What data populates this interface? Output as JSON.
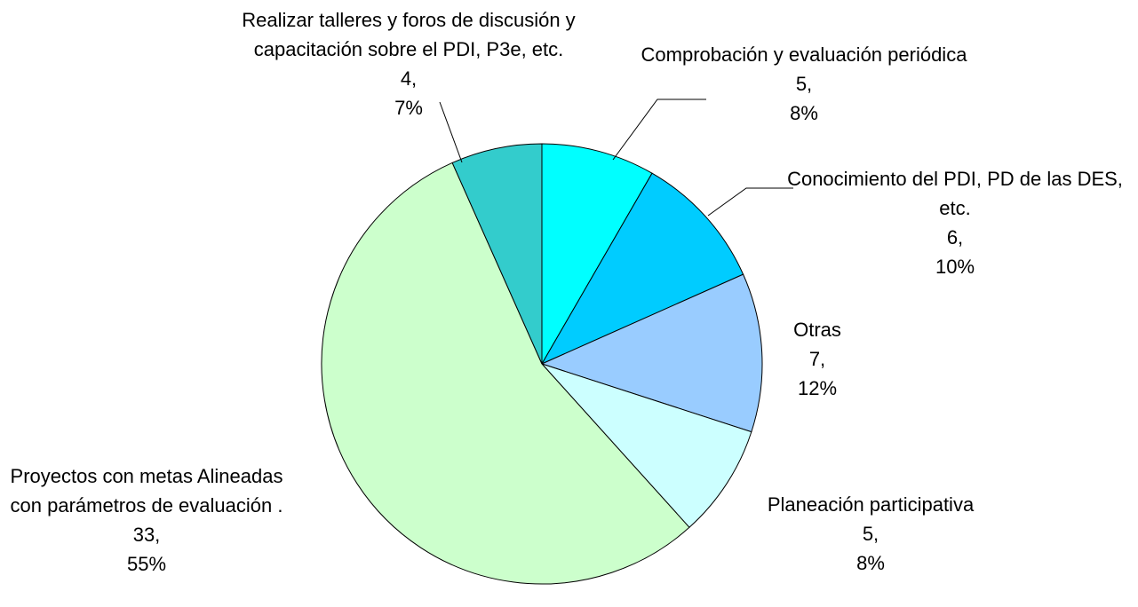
{
  "chart_data": {
    "type": "pie",
    "categories": [
      "Comprobación y evaluación periódica",
      "Conocimiento del PDI, PD de las DES, etc.",
      "Otras",
      "Planeación participativa",
      "Proyectos con metas Alineadas con parámetros de evaluación .",
      "Realizar talleres y foros de discusión y capacitación sobre el PDI, P3e, etc."
    ],
    "values": [
      5,
      6,
      7,
      5,
      33,
      4
    ],
    "value_labels": [
      "5,",
      "6,",
      "7,",
      "5,",
      "33,",
      "4,"
    ],
    "percents": [
      8,
      10,
      12,
      8,
      55,
      7
    ],
    "percent_labels": [
      "8%",
      "10%",
      "12%",
      "8%",
      "55%",
      "7%"
    ],
    "colors": [
      "#00FFFF",
      "#00CCFF",
      "#99CCFF",
      "#CCFFFF",
      "#CCFFCC",
      "#33CCCC"
    ]
  }
}
